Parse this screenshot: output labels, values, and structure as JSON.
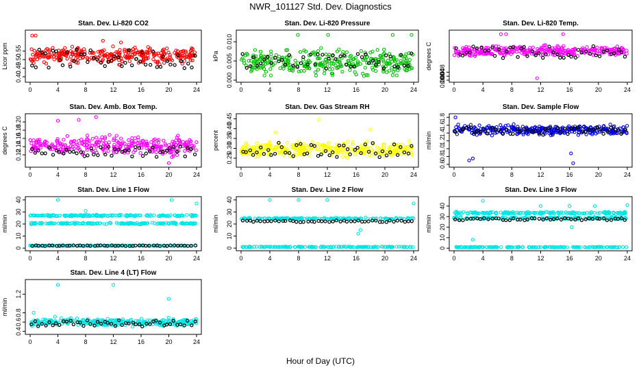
{
  "title": "NWR_101127  Std. Dev. Diagnostics",
  "xlabel": "Hour of Day (UTC)",
  "chart_data": [
    {
      "type": "scatter",
      "title": "Stan. Dev. Li-820 CO2",
      "ylabel": "Licor ppm",
      "xlim": [
        0,
        24
      ],
      "ylim": [
        0.38,
        0.66
      ],
      "xticks": [
        "0",
        "4",
        "8",
        "12",
        "16",
        "20",
        "24"
      ],
      "yticks": [
        {
          "v": 0.4,
          "l": "0.40"
        },
        {
          "v": 0.45,
          "l": "0.45"
        },
        {
          "v": 0.5,
          "l": "0.50"
        },
        {
          "v": 0.55,
          "l": "0.55"
        }
      ],
      "color": "#ff0000",
      "band": [
        0.46,
        0.59
      ],
      "black": [
        0.45,
        0.56
      ],
      "outliers": [
        [
          0.3,
          0.64
        ],
        [
          0.8,
          0.64
        ],
        [
          10.5,
          0.61
        ],
        [
          13.1,
          0.6
        ]
      ]
    },
    {
      "type": "scatter",
      "title": "Stan. Dev. Li-820 Pressure",
      "ylabel": "kPa",
      "xlim": [
        0,
        24
      ],
      "ylim": [
        0,
        0.0125
      ],
      "xticks": [
        "0",
        "4",
        "8",
        "12",
        "16",
        "20",
        "24"
      ],
      "yticks": [
        {
          "v": 0.0,
          "l": "0.000"
        },
        {
          "v": 0.005,
          "l": "0.005"
        },
        {
          "v": 0.01,
          "l": "0.010"
        }
      ],
      "color": "#00c000",
      "band": [
        0.0,
        0.009
      ],
      "black": [
        0.003,
        0.007
      ],
      "outliers": [
        [
          7.9,
          0.0118
        ],
        [
          12.1,
          0.0118
        ],
        [
          21.1,
          0.0118
        ],
        [
          23.7,
          0.0118
        ]
      ]
    },
    {
      "type": "scatter",
      "title": "Stan. Dev. Li-820 Temp.",
      "ylabel": "degrees C",
      "xlim": [
        0,
        24
      ],
      "ylim": [
        0,
        0.048
      ],
      "xticks": [
        "0",
        "4",
        "8",
        "12",
        "16",
        "20",
        "24"
      ],
      "yticks": [
        {
          "v": 0.0,
          "l": "0.000"
        },
        {
          "v": 0.004,
          "l": "0.004"
        },
        {
          "v": 0.008,
          "l": "0.008"
        }
      ],
      "color": "#ff00ff",
      "band": [
        0.022,
        0.036
      ],
      "black": [
        0.022,
        0.034
      ],
      "outliers": [
        [
          6.5,
          0.046
        ],
        [
          7.2,
          0.046
        ],
        [
          11.5,
          0.002
        ],
        [
          15.1,
          0.046
        ]
      ]
    },
    {
      "type": "scatter",
      "title": "Stan. Dev. Amb. Box Temp.",
      "ylabel": "degrees C",
      "xlim": [
        0,
        24
      ],
      "ylim": [
        0.095,
        0.215
      ],
      "xticks": [
        "0",
        "4",
        "8",
        "12",
        "16",
        "20",
        "24"
      ],
      "yticks": [
        {
          "v": 0.12,
          "l": "0.12"
        },
        {
          "v": 0.14,
          "l": "0.14"
        },
        {
          "v": 0.16,
          "l": "0.16"
        },
        {
          "v": 0.18,
          "l": "0.18"
        },
        {
          "v": 0.2,
          "l": "0.20"
        }
      ],
      "color": "#ff00ff",
      "band": [
        0.11,
        0.175
      ],
      "black": [
        0.115,
        0.14
      ],
      "outliers": [
        [
          4.0,
          0.203
        ],
        [
          7.0,
          0.205
        ],
        [
          9.5,
          0.212
        ],
        [
          20.0,
          0.1
        ]
      ]
    },
    {
      "type": "scatter",
      "title": "Stan. Dev. Gas Stream RH",
      "ylabel": "percent",
      "xlim": [
        0,
        24
      ],
      "ylim": [
        0.215,
        0.465
      ],
      "xticks": [
        "0",
        "4",
        "8",
        "12",
        "16",
        "20",
        "24"
      ],
      "yticks": [
        {
          "v": 0.25,
          "l": "0.25"
        },
        {
          "v": 0.3,
          "l": "0.30"
        },
        {
          "v": 0.35,
          "l": "0.35"
        },
        {
          "v": 0.4,
          "l": "0.40"
        },
        {
          "v": 0.45,
          "l": "0.45"
        }
      ],
      "color": "#ffff00",
      "band": [
        0.245,
        0.345
      ],
      "black": [
        0.255,
        0.33
      ],
      "outliers": [
        [
          10.8,
          0.445
        ],
        [
          18.0,
          0.395
        ],
        [
          4.8,
          0.38
        ]
      ]
    },
    {
      "type": "scatter",
      "title": "Stan. Dev. Sample Flow",
      "ylabel": "ml/min",
      "xlim": [
        0,
        24
      ],
      "ylim": [
        0.58,
        1.84
      ],
      "xticks": [
        "0",
        "4",
        "8",
        "12",
        "16",
        "20",
        "24"
      ],
      "yticks": [
        {
          "v": 0.6,
          "l": "0.6"
        },
        {
          "v": 0.8,
          "l": "0.8"
        },
        {
          "v": 1.0,
          "l": "1.0"
        },
        {
          "v": 1.2,
          "l": "1.2"
        },
        {
          "v": 1.4,
          "l": "1.4"
        },
        {
          "v": 1.6,
          "l": "1.6"
        },
        {
          "v": 1.8,
          "l": "1.8"
        }
      ],
      "color": "#0000e0",
      "band": [
        1.3,
        1.65
      ],
      "black": [
        1.35,
        1.55
      ],
      "outliers": [
        [
          0.2,
          1.8
        ],
        [
          2.6,
          0.75
        ],
        [
          2.1,
          0.7
        ],
        [
          16.5,
          0.63
        ],
        [
          16.2,
          0.88
        ]
      ]
    },
    {
      "type": "scatter",
      "title": "Stan. Dev. Line 1 Flow",
      "ylabel": "ml/min",
      "xlim": [
        0,
        24
      ],
      "ylim": [
        -0.5,
        41
      ],
      "xticks": [
        "0",
        "4",
        "8",
        "12",
        "16",
        "20",
        "24"
      ],
      "yticks": [
        {
          "v": 0,
          "l": "0"
        },
        {
          "v": 10,
          "l": "10"
        },
        {
          "v": 20,
          "l": "20"
        },
        {
          "v": 30,
          "l": "30"
        },
        {
          "v": 40,
          "l": "40"
        }
      ],
      "color": "#00e5e5",
      "bands": [
        [
          26,
          28
        ],
        [
          19.5,
          21.5
        ],
        [
          1.6,
          2.4
        ]
      ],
      "black": [
        1.7,
        2.3
      ],
      "outliers": [
        [
          4.0,
          40
        ],
        [
          8.0,
          31
        ],
        [
          24.0,
          37
        ],
        [
          20.4,
          40
        ]
      ]
    },
    {
      "type": "scatter",
      "title": "Stan. Dev. Line 2 Flow",
      "ylabel": "ml/min",
      "xlim": [
        0,
        24
      ],
      "ylim": [
        -0.5,
        41
      ],
      "xticks": [
        "0",
        "4",
        "8",
        "12",
        "16",
        "20",
        "24"
      ],
      "yticks": [
        {
          "v": 0,
          "l": "0"
        },
        {
          "v": 10,
          "l": "10"
        },
        {
          "v": 20,
          "l": "20"
        },
        {
          "v": 30,
          "l": "30"
        },
        {
          "v": 40,
          "l": "40"
        }
      ],
      "color": "#00e5e5",
      "bands": [
        [
          23.5,
          25.5
        ],
        [
          0.5,
          1.5
        ]
      ],
      "black": [
        21.5,
        23
      ],
      "outliers": [
        [
          4.0,
          40
        ],
        [
          8.0,
          40
        ],
        [
          12.0,
          40
        ],
        [
          24.0,
          37
        ],
        [
          16.3,
          12
        ],
        [
          16.6,
          15
        ]
      ]
    },
    {
      "type": "scatter",
      "title": "Stan. Dev. Line 3 Flow",
      "ylabel": "ml/min",
      "xlim": [
        0,
        24
      ],
      "ylim": [
        -0.5,
        47
      ],
      "xticks": [
        "0",
        "4",
        "8",
        "12",
        "16",
        "20",
        "24"
      ],
      "yticks": [
        {
          "v": 0,
          "l": "0"
        },
        {
          "v": 10,
          "l": "10"
        },
        {
          "v": 20,
          "l": "20"
        },
        {
          "v": 30,
          "l": "30"
        },
        {
          "v": 40,
          "l": "40"
        }
      ],
      "color": "#00e5e5",
      "bands": [
        [
          32,
          35
        ],
        [
          27,
          30
        ],
        [
          0.5,
          1.5
        ]
      ],
      "black": [
        26.5,
        28.5
      ],
      "outliers": [
        [
          4.0,
          45
        ],
        [
          12.0,
          40
        ],
        [
          16.0,
          40
        ],
        [
          19.5,
          40
        ],
        [
          24.0,
          41
        ],
        [
          2.6,
          8
        ],
        [
          16.3,
          20
        ]
      ]
    },
    {
      "type": "scatter",
      "title": "Stan. Dev. Line 4 (LT) Flow",
      "ylabel": "ml/min",
      "xlim": [
        0,
        24
      ],
      "ylim": [
        0.38,
        1.47
      ],
      "xticks": [
        "0",
        "4",
        "8",
        "12",
        "16",
        "20",
        "24"
      ],
      "yticks": [
        {
          "v": 0.4,
          "l": "0.4"
        },
        {
          "v": 0.6,
          "l": "0.6"
        },
        {
          "v": 0.8,
          "l": "0.8"
        },
        {
          "v": 1.2,
          "l": "1.2"
        }
      ],
      "color": "#00e5e5",
      "band": [
        0.48,
        0.72
      ],
      "black": [
        0.5,
        0.64
      ],
      "outliers": [
        [
          4.0,
          1.4
        ],
        [
          12.0,
          1.4
        ],
        [
          20.0,
          1.1
        ],
        [
          0.5,
          0.8
        ]
      ]
    }
  ]
}
